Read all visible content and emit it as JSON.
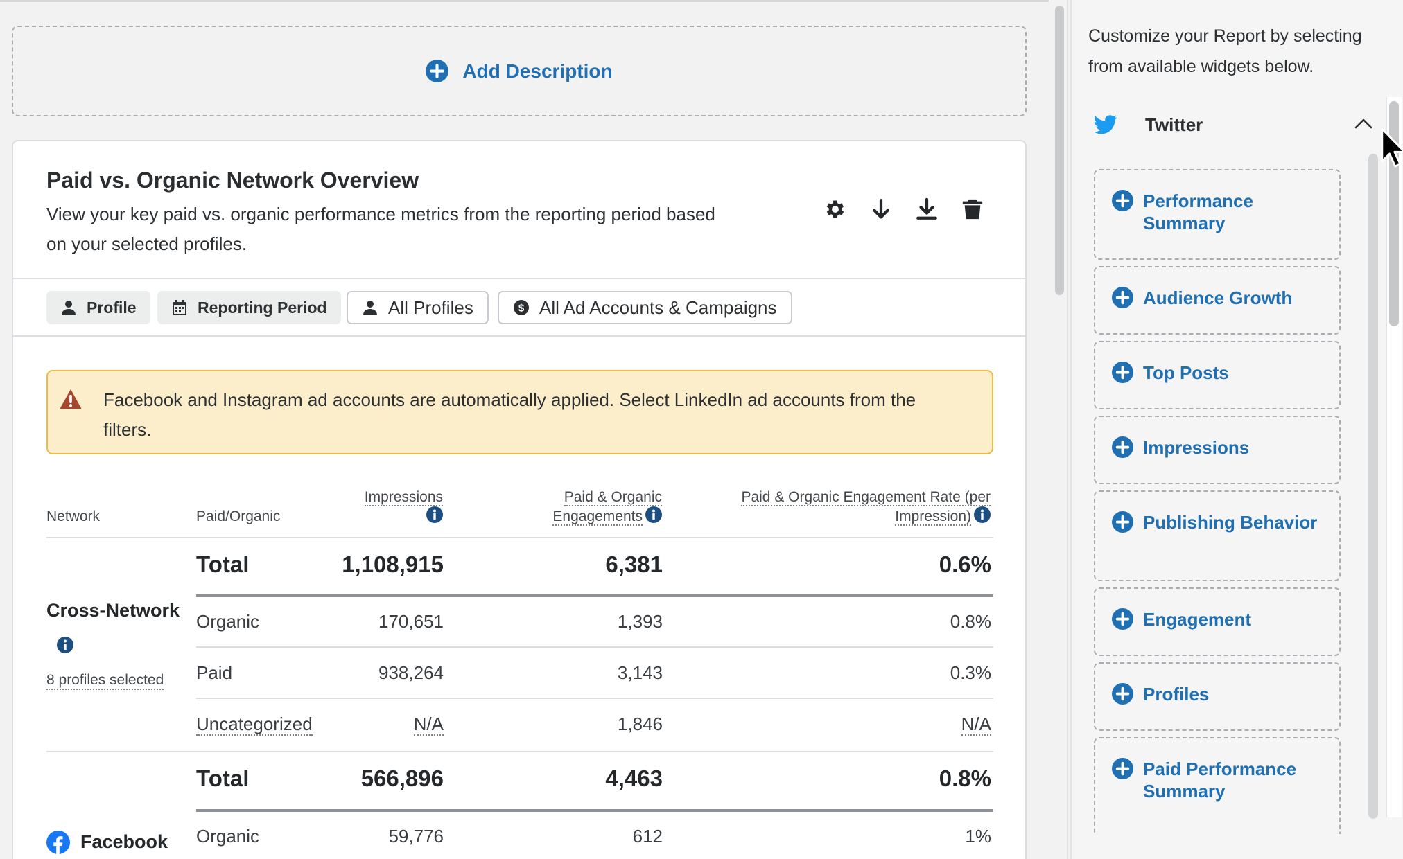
{
  "add_description_label": "Add Description",
  "card": {
    "title": "Paid vs. Organic Network Overview",
    "description": "View your key paid vs. organic performance metrics from the reporting period based on your selected profiles.",
    "actions": [
      "gear-icon",
      "arrow-down-icon",
      "download-icon",
      "trash-icon"
    ]
  },
  "filters": {
    "profile": "Profile",
    "reporting_period": "Reporting Period",
    "all_profiles": "All Profiles",
    "all_ad_accounts": "All Ad Accounts & Campaigns"
  },
  "alert": {
    "text": "Facebook and Instagram ad accounts are automatically applied. Select LinkedIn ad accounts from the filters.",
    "color": "#fdeecb"
  },
  "table": {
    "headers": {
      "network": "Network",
      "paid_organic": "Paid/Organic",
      "impressions": "Impressions",
      "engagements_1": "Paid & Organic",
      "engagements_2": "Engagements",
      "rate_1": "Paid & Organic Engagement Rate (per",
      "rate_2": "Impression)"
    },
    "groups": [
      {
        "network": "Cross-Network",
        "sub": "8 profiles selected",
        "total": {
          "label": "Total",
          "impressions": "1,108,915",
          "engagements": "6,381",
          "rate": "0.6%"
        },
        "rows": [
          {
            "label": "Organic",
            "impressions": "170,651",
            "engagements": "1,393",
            "rate": "0.8%"
          },
          {
            "label": "Paid",
            "impressions": "938,264",
            "engagements": "3,143",
            "rate": "0.3%"
          },
          {
            "label": "Uncategorized",
            "impressions": "N/A",
            "engagements": "1,846",
            "rate": "N/A"
          }
        ]
      },
      {
        "network": "Facebook",
        "total": {
          "label": "Total",
          "impressions": "566,896",
          "engagements": "4,463",
          "rate": "0.8%"
        },
        "rows": [
          {
            "label": "Organic",
            "impressions": "59,776",
            "engagements": "612",
            "rate": "1%"
          }
        ]
      }
    ]
  },
  "panel": {
    "intro": "Customize your Report by selecting from available widgets below.",
    "section": "Twitter",
    "widgets": [
      "Performance Summary",
      "Audience Growth",
      "Top Posts",
      "Impressions",
      "Publishing Behavior",
      "Engagement",
      "Profiles",
      "Paid Performance Summary"
    ]
  },
  "colors": {
    "accent": "#1f6fb2",
    "twitter": "#1d9bf0",
    "facebook": "#1877f2",
    "alert_border": "#eebb44"
  }
}
